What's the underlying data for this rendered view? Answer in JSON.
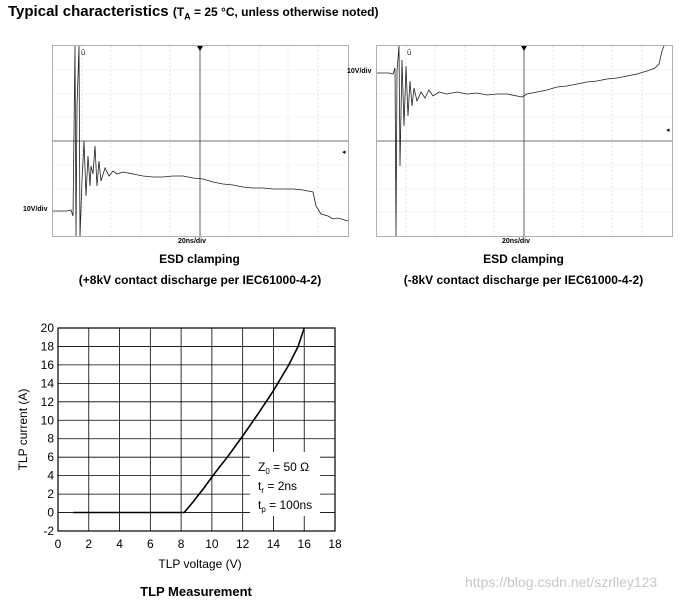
{
  "heading": {
    "title": "Typical characteristics",
    "cond_open": "(T",
    "cond_sub": "A",
    "cond_rest": " = 25 °C, unless otherwise noted)"
  },
  "scope_left": {
    "v_div": "10V/div",
    "t_div": "20ns/div",
    "caption1": "ESD clamping",
    "caption2": "(+8kV contact discharge per IEC61000-4-2)"
  },
  "scope_right": {
    "v_div": "10V/div",
    "t_div": "20ns/div",
    "caption1": "ESD clamping",
    "caption2": "(-8kV contact discharge per IEC61000-4-2)"
  },
  "annotation": {
    "z_main": "Z",
    "z_sub": "0",
    "z_rest": " = 50 Ω",
    "tr_main": "t",
    "tr_sub": "r",
    "tr_rest": " = 2ns",
    "tp_main": "t",
    "tp_sub": "p",
    "tp_rest": " = 100ns"
  },
  "watermark": "https://blog.csdn.net/szrlley123",
  "chart_data": {
    "type": "line",
    "title": "TLP Measurement",
    "xlabel": "TLP voltage (V)",
    "ylabel": "TLP current (A)",
    "xlim": [
      0,
      18
    ],
    "ylim": [
      -2,
      20
    ],
    "xticks": [
      0,
      2,
      4,
      6,
      8,
      10,
      12,
      14,
      16,
      18
    ],
    "yticks": [
      -2,
      0,
      2,
      4,
      6,
      8,
      10,
      12,
      14,
      16,
      18,
      20
    ],
    "grid": true,
    "series": [
      {
        "name": "TLP",
        "x": [
          1,
          8.2,
          8.8,
          9.5,
          10.2,
          11,
          12,
          13,
          14,
          15,
          15.6,
          16
        ],
        "y": [
          0,
          0,
          1.2,
          2.7,
          4.3,
          6,
          8.3,
          10.7,
          13.2,
          16,
          18,
          20
        ]
      }
    ]
  }
}
